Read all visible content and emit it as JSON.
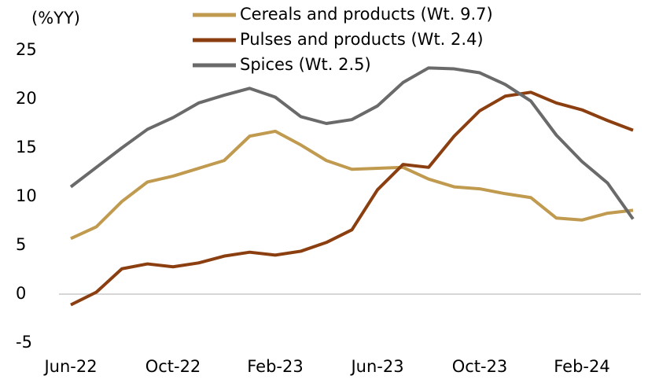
{
  "chart_data": {
    "type": "line",
    "y_label": "(%YY)",
    "categories": [
      "Jun-22",
      null,
      null,
      null,
      "Oct-22",
      null,
      null,
      null,
      "Feb-23",
      null,
      null,
      null,
      "Jun-23",
      null,
      null,
      null,
      "Oct-23",
      null,
      null,
      null,
      "Feb-24",
      null,
      null
    ],
    "series": [
      {
        "name": "Cereals and products (Wt. 9.7)",
        "color": "#c09a4e",
        "values": [
          5.7,
          6.9,
          9.5,
          11.5,
          12.1,
          12.9,
          13.7,
          16.2,
          16.7,
          15.3,
          13.7,
          12.8,
          12.9,
          13.0,
          11.8,
          11.0,
          10.8,
          10.3,
          9.9,
          7.8,
          7.6,
          8.3,
          8.6
        ]
      },
      {
        "name": "Pulses and products (Wt. 2.4)",
        "color": "#8b3e0f",
        "values": [
          -1.1,
          0.2,
          2.6,
          3.1,
          2.8,
          3.2,
          3.9,
          4.3,
          4.0,
          4.4,
          5.3,
          6.6,
          10.7,
          13.3,
          13.0,
          16.2,
          18.8,
          20.3,
          20.7,
          19.6,
          18.9,
          17.8,
          16.8
        ]
      },
      {
        "name": "Spices (Wt. 2.5)",
        "color": "#6a6a6a",
        "values": [
          11.0,
          13.0,
          15.0,
          16.9,
          18.1,
          19.6,
          20.4,
          21.1,
          20.2,
          18.2,
          17.5,
          17.9,
          19.3,
          21.7,
          23.2,
          23.1,
          22.7,
          21.5,
          19.8,
          16.3,
          13.6,
          11.4,
          7.7
        ]
      }
    ],
    "ylim": [
      -5,
      25
    ],
    "yticks": [
      -5,
      0,
      5,
      10,
      15,
      20,
      25
    ],
    "grid": false,
    "legend": "top"
  }
}
